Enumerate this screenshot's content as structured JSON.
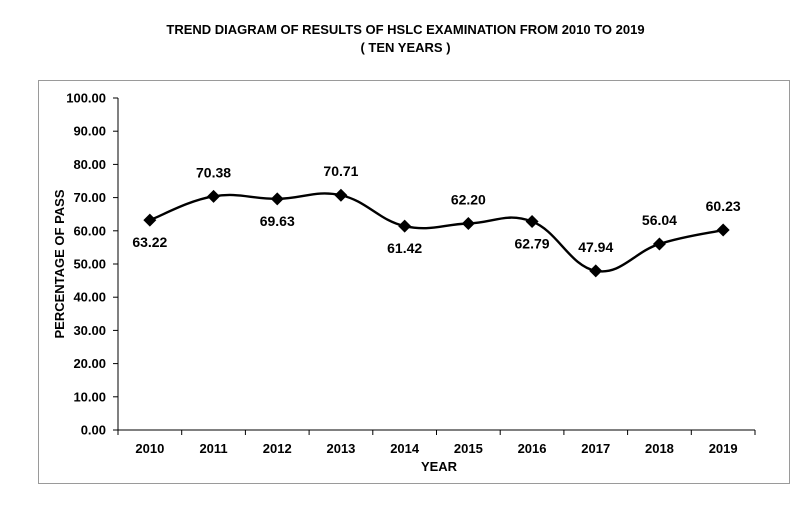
{
  "chart_data": {
    "type": "line",
    "title": "TREND DIAGRAM OF RESULTS OF HSLC EXAMINATION FROM 2010 TO 2019",
    "subtitle": "( TEN YEARS )",
    "xlabel": "YEAR",
    "ylabel": "PERCENTAGE OF PASS",
    "categories": [
      "2010",
      "2011",
      "2012",
      "2013",
      "2014",
      "2015",
      "2016",
      "2017",
      "2018",
      "2019"
    ],
    "series": [
      {
        "values": [
          63.22,
          70.38,
          69.63,
          70.71,
          61.42,
          62.2,
          62.79,
          47.94,
          56.04,
          60.23
        ]
      }
    ],
    "data_labels": [
      "63.22",
      "70.38",
      "69.63",
      "70.71",
      "61.42",
      "62.20",
      "62.79",
      "47.94",
      "56.04",
      "60.23"
    ],
    "label_side": [
      "below",
      "above",
      "below",
      "above",
      "below",
      "above",
      "below",
      "above",
      "above",
      "above"
    ],
    "yticks": [
      "0.00",
      "10.00",
      "20.00",
      "30.00",
      "40.00",
      "50.00",
      "60.00",
      "70.00",
      "80.00",
      "90.00",
      "100.00"
    ],
    "ylim": [
      0,
      100
    ],
    "grid": false,
    "legend": "none",
    "marker": "diamond",
    "line_color": "#000000"
  }
}
